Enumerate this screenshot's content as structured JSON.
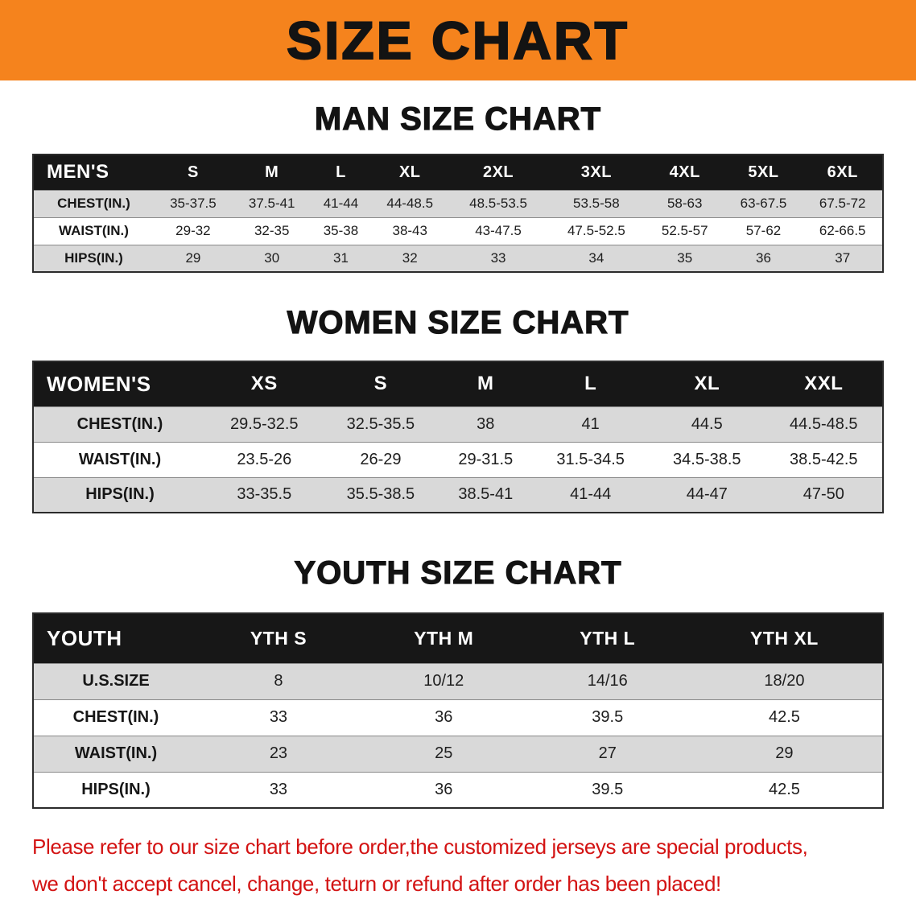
{
  "banner": {
    "title": "SIZE CHART",
    "bg_color": "#f5831d",
    "text_color": "#131313"
  },
  "chart_data": [
    {
      "type": "table",
      "title": "MAN SIZE CHART",
      "header": [
        "MEN'S",
        "S",
        "M",
        "L",
        "XL",
        "2XL",
        "3XL",
        "4XL",
        "5XL",
        "6XL"
      ],
      "rows": [
        [
          "CHEST(IN.)",
          "35-37.5",
          "37.5-41",
          "41-44",
          "44-48.5",
          "48.5-53.5",
          "53.5-58",
          "58-63",
          "63-67.5",
          "67.5-72"
        ],
        [
          "WAIST(IN.)",
          "29-32",
          "32-35",
          "35-38",
          "38-43",
          "43-47.5",
          "47.5-52.5",
          "52.5-57",
          "57-62",
          "62-66.5"
        ],
        [
          "HIPS(IN.)",
          "29",
          "30",
          "31",
          "32",
          "33",
          "34",
          "35",
          "36",
          "37"
        ]
      ]
    },
    {
      "type": "table",
      "title": "WOMEN SIZE CHART",
      "header": [
        "WOMEN'S",
        "XS",
        "S",
        "M",
        "L",
        "XL",
        "XXL"
      ],
      "rows": [
        [
          "CHEST(IN.)",
          "29.5-32.5",
          "32.5-35.5",
          "38",
          "41",
          "44.5",
          "44.5-48.5"
        ],
        [
          "WAIST(IN.)",
          "23.5-26",
          "26-29",
          "29-31.5",
          "31.5-34.5",
          "34.5-38.5",
          "38.5-42.5"
        ],
        [
          "HIPS(IN.)",
          "33-35.5",
          "35.5-38.5",
          "38.5-41",
          "41-44",
          "44-47",
          "47-50"
        ]
      ]
    },
    {
      "type": "table",
      "title": "YOUTH SIZE CHART",
      "header": [
        "YOUTH",
        "YTH S",
        "YTH M",
        "YTH L",
        "YTH XL"
      ],
      "rows": [
        [
          "U.S.SIZE",
          "8",
          "10/12",
          "14/16",
          "18/20"
        ],
        [
          "CHEST(IN.)",
          "33",
          "36",
          "39.5",
          "42.5"
        ],
        [
          "WAIST(IN.)",
          "23",
          "25",
          "27",
          "29"
        ],
        [
          "HIPS(IN.)",
          "33",
          "36",
          "39.5",
          "42.5"
        ]
      ]
    }
  ],
  "notice": {
    "line1": "Please refer to our size chart before order,the customized jerseys are special products,",
    "line2": "we don't accept cancel, change, teturn or refund after order has been placed!",
    "text_color": "#d31313"
  },
  "row_colors": {
    "header_bg": "#171717",
    "stripe_gray": "#d9d9d9",
    "stripe_white": "#ffffff"
  }
}
